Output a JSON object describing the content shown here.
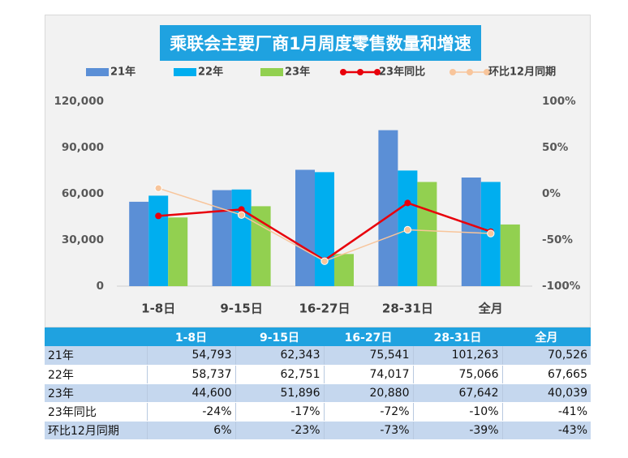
{
  "chart_data": {
    "type": "bar",
    "title": "乘联会主要厂商1月周度零售数量和增速",
    "categories": [
      "1-8日",
      "9-15日",
      "16-27日",
      "28-31日",
      "全月"
    ],
    "series": [
      {
        "name": "21年",
        "kind": "bar",
        "color": "#5b8fd6",
        "values": [
          54793,
          62343,
          75541,
          101263,
          70526
        ]
      },
      {
        "name": "22年",
        "kind": "bar",
        "color": "#00aeef",
        "values": [
          58737,
          62751,
          74017,
          75066,
          67665
        ]
      },
      {
        "name": "23年",
        "kind": "bar",
        "color": "#92d050",
        "values": [
          44600,
          51896,
          20880,
          67642,
          40039
        ]
      },
      {
        "name": "23年同比",
        "kind": "line",
        "axis": "right",
        "color": "#e8000b",
        "values": [
          -24,
          -17,
          -72,
          -10,
          -41
        ]
      },
      {
        "name": "环比12月同期",
        "kind": "line",
        "axis": "right",
        "color": "#f8c59b",
        "values": [
          6,
          -23,
          -73,
          -39,
          -43
        ]
      }
    ],
    "y_left": {
      "min": 0,
      "max": 120000,
      "ticks": [
        "0",
        "30,000",
        "60,000",
        "90,000",
        "120,000"
      ],
      "tick_values": [
        0,
        30000,
        60000,
        90000,
        120000
      ]
    },
    "y_right": {
      "min": -100,
      "max": 100,
      "ticks": [
        "-100%",
        "-50%",
        "0%",
        "50%",
        "100%"
      ],
      "tick_values": [
        -100,
        -50,
        0,
        50,
        100
      ]
    },
    "grid": false,
    "legend": "top"
  },
  "table": {
    "headers": [
      "",
      "1-8日",
      "9-15日",
      "16-27日",
      "28-31日",
      "全月"
    ],
    "rows": [
      {
        "label": "21年",
        "cells": [
          "54,793",
          "62,343",
          "75,541",
          "101,263",
          "70,526"
        ]
      },
      {
        "label": "22年",
        "cells": [
          "58,737",
          "62,751",
          "74,017",
          "75,066",
          "67,665"
        ]
      },
      {
        "label": "23年",
        "cells": [
          "44,600",
          "51,896",
          "20,880",
          "67,642",
          "40,039"
        ]
      },
      {
        "label": "23年同比",
        "cells": [
          "-24%",
          "-17%",
          "-72%",
          "-10%",
          "-41%"
        ]
      },
      {
        "label": "环比12月同期",
        "cells": [
          "6%",
          "-23%",
          "-73%",
          "-39%",
          "-43%"
        ]
      }
    ]
  }
}
